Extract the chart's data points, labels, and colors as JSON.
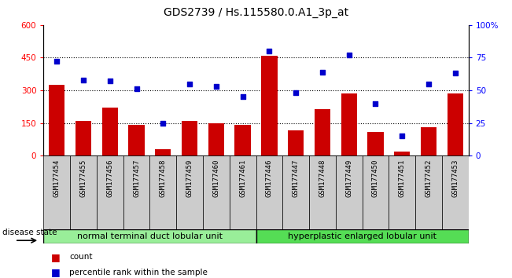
{
  "title": "GDS2739 / Hs.115580.0.A1_3p_at",
  "samples": [
    "GSM177454",
    "GSM177455",
    "GSM177456",
    "GSM177457",
    "GSM177458",
    "GSM177459",
    "GSM177460",
    "GSM177461",
    "GSM177446",
    "GSM177447",
    "GSM177448",
    "GSM177449",
    "GSM177450",
    "GSM177451",
    "GSM177452",
    "GSM177453"
  ],
  "counts": [
    325,
    160,
    220,
    140,
    30,
    160,
    150,
    140,
    460,
    115,
    215,
    285,
    110,
    20,
    130,
    285
  ],
  "percentiles": [
    72,
    58,
    57,
    51,
    25,
    55,
    53,
    45,
    80,
    48,
    64,
    77,
    40,
    15,
    55,
    63
  ],
  "group1_label": "normal terminal duct lobular unit",
  "group2_label": "hyperplastic enlarged lobular unit",
  "group1_count": 8,
  "group2_count": 8,
  "disease_state_label": "disease state",
  "bar_color": "#cc0000",
  "dot_color": "#0000cc",
  "ylim_left": [
    0,
    600
  ],
  "ylim_right": [
    0,
    100
  ],
  "yticks_left": [
    0,
    150,
    300,
    450,
    600
  ],
  "yticks_right": [
    0,
    25,
    50,
    75,
    100
  ],
  "ytick_right_labels": [
    "0",
    "25",
    "50",
    "75",
    "100%"
  ],
  "bg_xtick": "#cccccc",
  "bg_group1": "#99ee99",
  "bg_group2": "#55dd55",
  "legend_count_label": "count",
  "legend_pct_label": "percentile rank within the sample",
  "title_fontsize": 10,
  "tick_fontsize": 6.5,
  "group_fontsize": 8
}
